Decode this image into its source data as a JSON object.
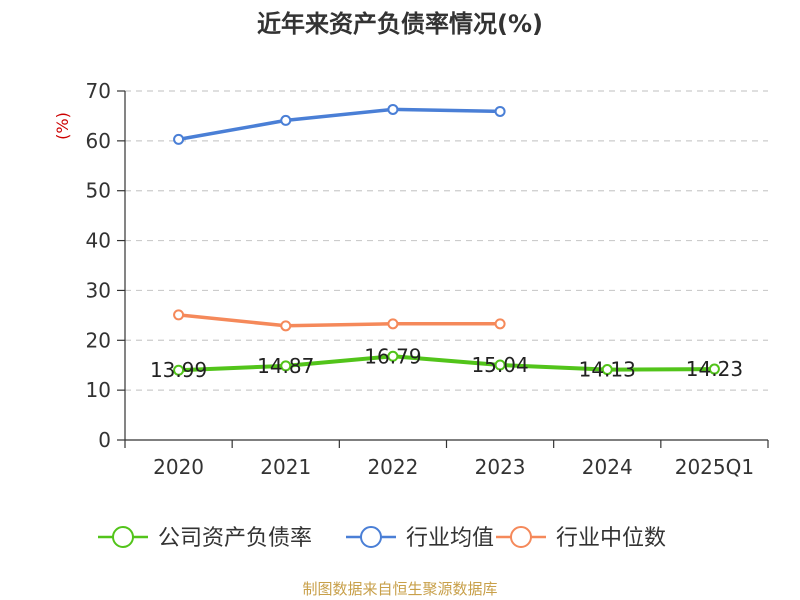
{
  "chart_data": {
    "type": "line",
    "title": "近年来资产负债率情况(%)",
    "ylabel": "(%)",
    "categories": [
      "2020",
      "2021",
      "2022",
      "2023",
      "2024",
      "2025Q1"
    ],
    "ylim": [
      0,
      70
    ],
    "yticks": [
      0,
      10,
      20,
      30,
      40,
      50,
      60,
      70
    ],
    "grid": true,
    "legend_position": "bottom",
    "series": [
      {
        "name": "公司资产负债率",
        "color": "#52c41a",
        "values": [
          13.99,
          14.87,
          16.79,
          15.04,
          14.13,
          14.23
        ],
        "labels": [
          "13.99",
          "14.87",
          "16.79",
          "15.04",
          "14.13",
          "14.23"
        ]
      },
      {
        "name": "行业均值",
        "color": "#4a7fd6",
        "values": [
          60.3,
          64.1,
          66.3,
          65.9,
          null,
          null
        ]
      },
      {
        "name": "行业中位数",
        "color": "#f5895a",
        "values": [
          25.1,
          22.9,
          23.3,
          23.3,
          null,
          null
        ]
      }
    ]
  },
  "source": "制图数据来自恒生聚源数据库",
  "colors": {
    "unit": "#cc0000",
    "source": "#c8a04a",
    "grid": "#cccccc",
    "axis": "#333333"
  }
}
